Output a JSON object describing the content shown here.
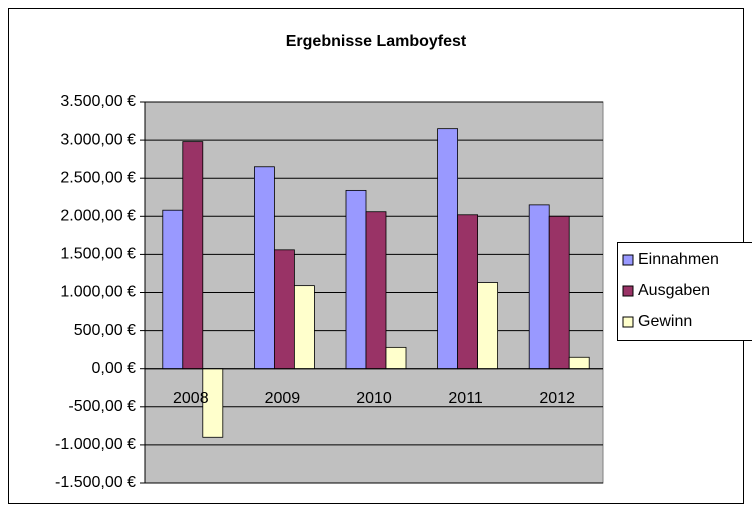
{
  "chart_data": {
    "type": "bar",
    "title": "Ergebnisse Lamboyfest",
    "categories": [
      "2008",
      "2009",
      "2010",
      "2011",
      "2012"
    ],
    "series": [
      {
        "name": "Einnahmen",
        "color": "#9999ff",
        "values": [
          2080,
          2650,
          2340,
          3150,
          2150
        ]
      },
      {
        "name": "Ausgaben",
        "color": "#993366",
        "values": [
          2980,
          1560,
          2060,
          2020,
          2000
        ]
      },
      {
        "name": "Gewinn",
        "color": "#ffffcc",
        "values": [
          -900,
          1090,
          280,
          1130,
          150
        ]
      }
    ],
    "ylim": [
      -1500,
      3500
    ],
    "yticks": [
      {
        "value": -1500,
        "label": "-1.500,00 €"
      },
      {
        "value": -1000,
        "label": "-1.000,00 €"
      },
      {
        "value": -500,
        "label": "-500,00 €"
      },
      {
        "value": 0,
        "label": "0,00 €"
      },
      {
        "value": 500,
        "label": "500,00 €"
      },
      {
        "value": 1000,
        "label": "1.000,00 €"
      },
      {
        "value": 1500,
        "label": "1.500,00 €"
      },
      {
        "value": 2000,
        "label": "2.000,00 €"
      },
      {
        "value": 2500,
        "label": "2.500,00 €"
      },
      {
        "value": 3000,
        "label": "3.000,00 €"
      },
      {
        "value": 3500,
        "label": "3.500,00 €"
      }
    ],
    "grid": true,
    "legend": "right",
    "plot_background": "#c0c0c0",
    "negative_tick_color": "#ff0000"
  }
}
